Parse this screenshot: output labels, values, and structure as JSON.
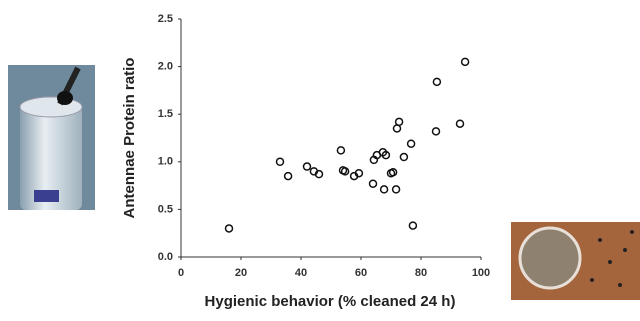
{
  "chart_data": {
    "type": "scatter",
    "x_label": "Hygienic behavior (% cleaned 24 h)",
    "y_label": "Antennae Protein ratio",
    "x": [
      16,
      33,
      35.7,
      42,
      44.3,
      46,
      53.3,
      54,
      54.7,
      57.7,
      59.3,
      64,
      64.3,
      65.3,
      67.3,
      68.3,
      67.7,
      70,
      70.7,
      71.7,
      72,
      72.7,
      74.3,
      76.7,
      77.3,
      85,
      85.3,
      93,
      94.7
    ],
    "y": [
      0.3,
      1.0,
      0.85,
      0.95,
      0.9,
      0.87,
      1.12,
      0.91,
      0.9,
      0.85,
      0.88,
      0.77,
      1.02,
      1.07,
      1.1,
      1.07,
      0.71,
      0.88,
      0.89,
      0.71,
      1.35,
      1.42,
      1.05,
      1.19,
      0.33,
      1.32,
      1.84,
      1.4,
      2.05
    ],
    "color": "#111111",
    "xlim": [
      0,
      100
    ],
    "xticks": [
      0,
      20,
      40,
      60,
      80,
      100
    ],
    "ylim": [
      0,
      2.5
    ],
    "yticks": [
      {
        "value": 0,
        "label": "0.0"
      },
      {
        "value": 0.5,
        "label": "0.5"
      },
      {
        "value": 1,
        "label": "1.0"
      },
      {
        "value": 1.5,
        "label": "1.5"
      },
      {
        "value": 2,
        "label": "2.0"
      },
      {
        "value": 2.5,
        "label": "2.5"
      }
    ]
  }
}
